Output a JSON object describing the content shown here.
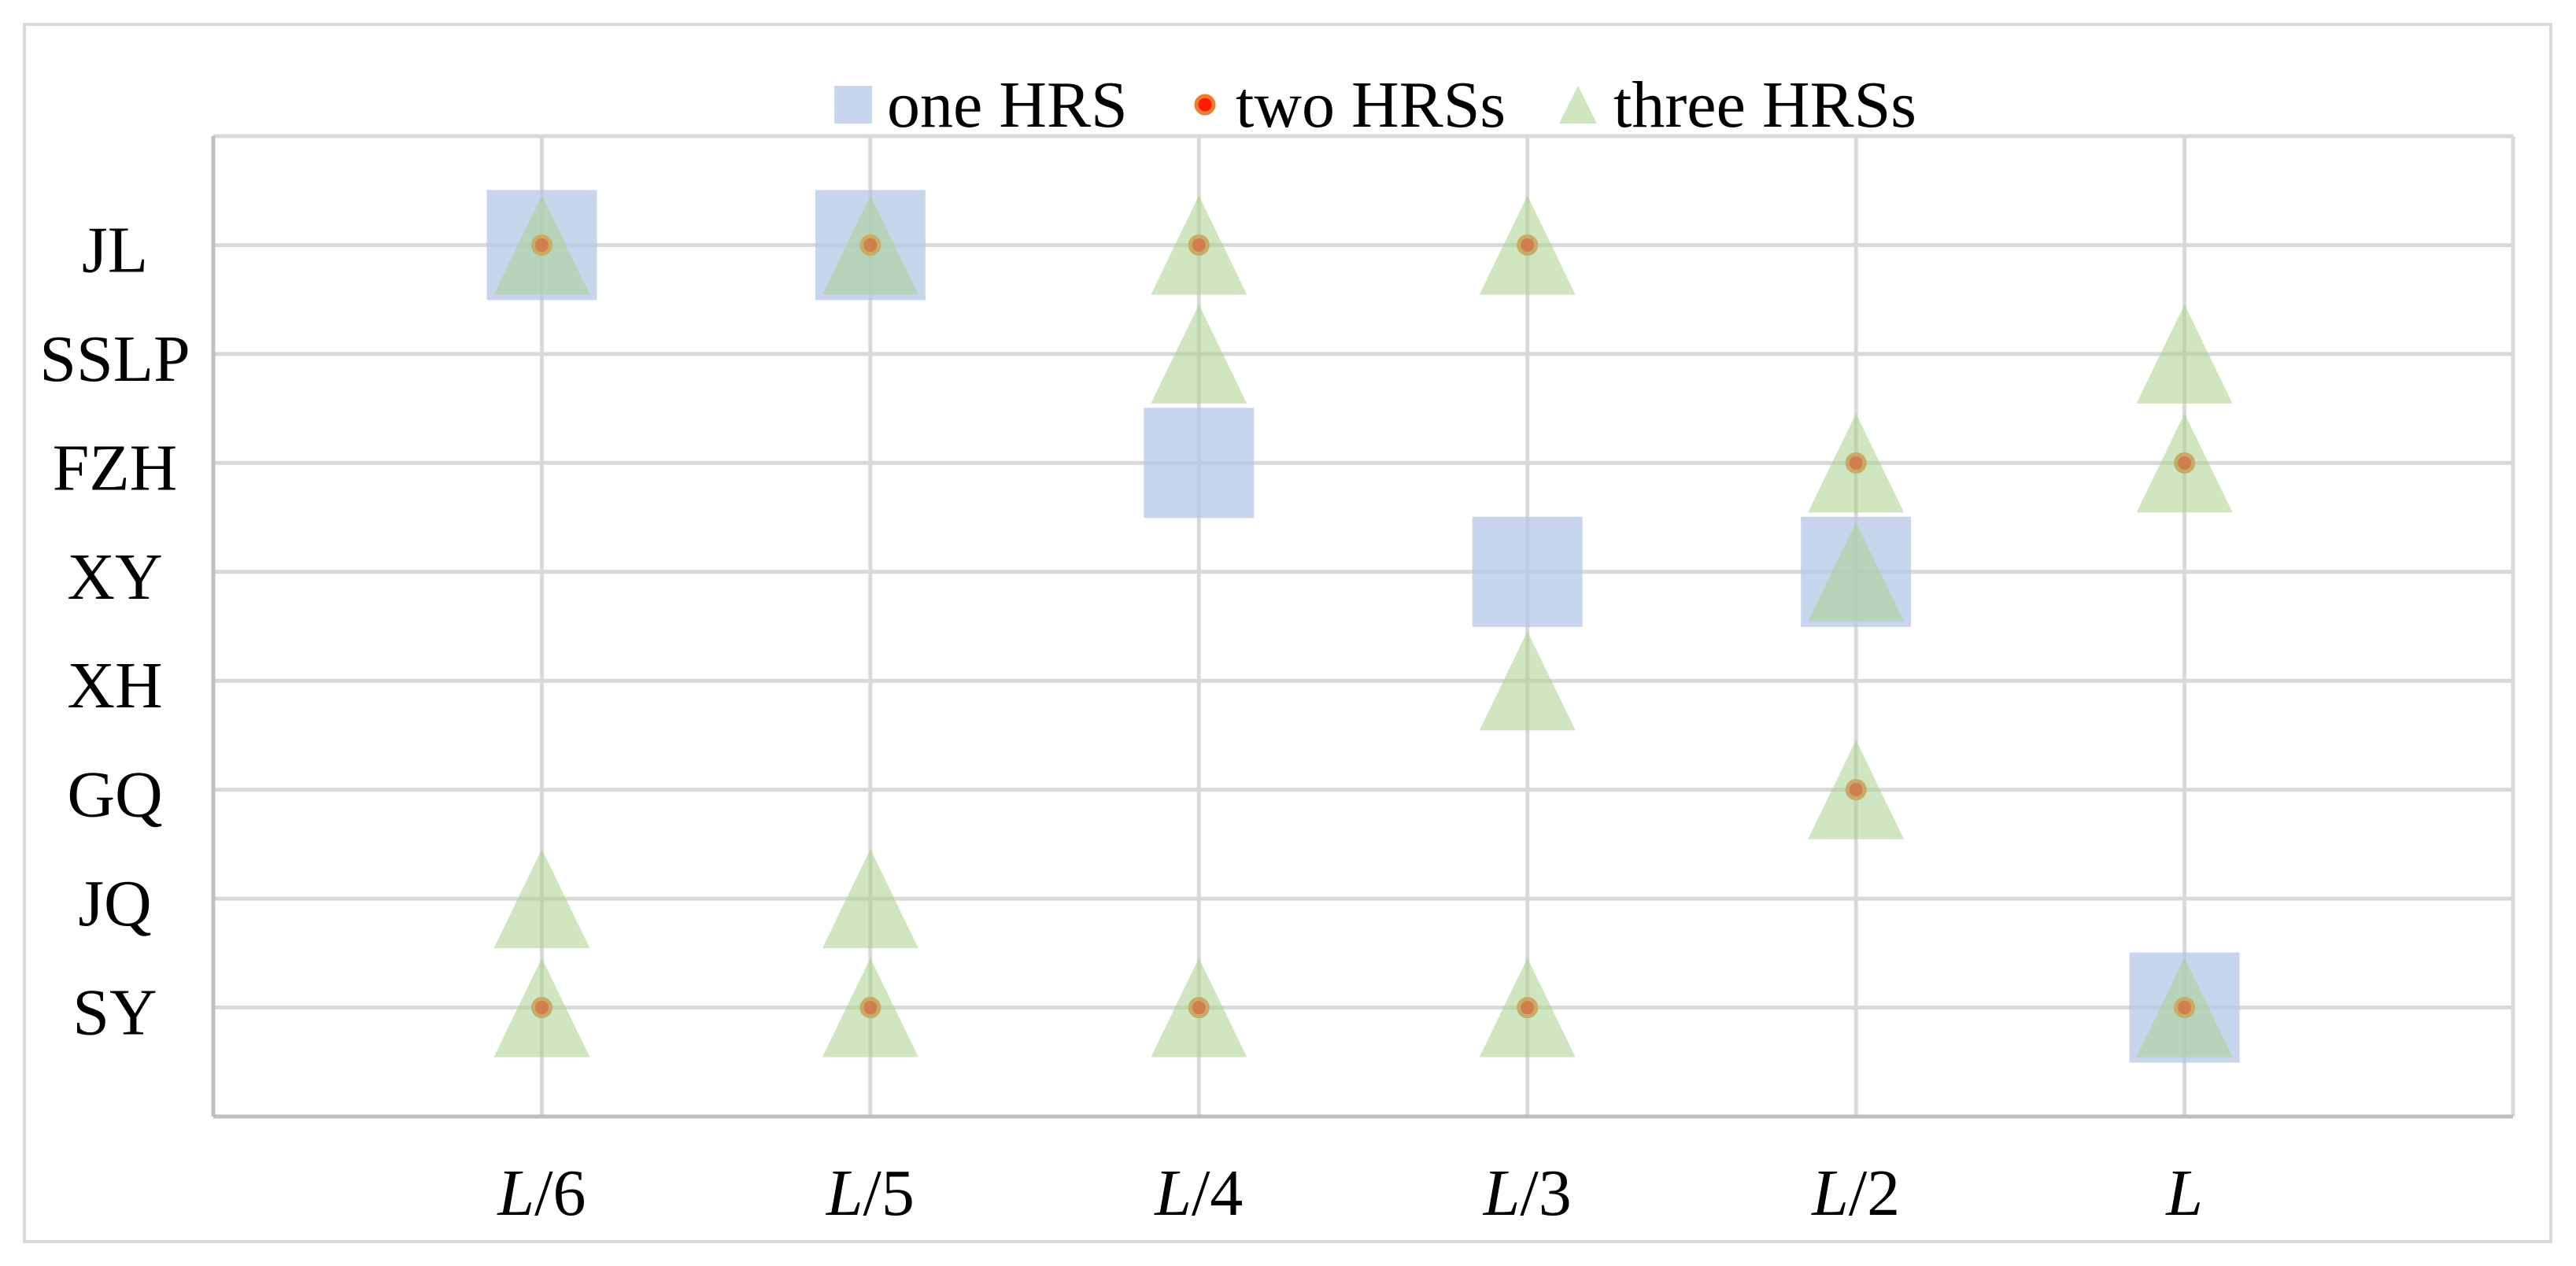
{
  "chart_data": {
    "type": "scatter",
    "x_categories": [
      "L/6",
      "L/5",
      "L/4",
      "L/3",
      "L/2",
      "L"
    ],
    "y_categories": [
      "JL",
      "SSLP",
      "FZH",
      "XY",
      "XH",
      "GQ",
      "JQ",
      "SY"
    ],
    "grid": true,
    "legend_position": "top",
    "series": [
      {
        "name": "one HRS",
        "marker": "square",
        "color": "#b4c7e7",
        "points": [
          [
            "L/6",
            "JL"
          ],
          [
            "L/5",
            "JL"
          ],
          [
            "L/4",
            "FZH"
          ],
          [
            "L/3",
            "XY"
          ],
          [
            "L/2",
            "XY"
          ],
          [
            "L",
            "SY"
          ]
        ]
      },
      {
        "name": "two HRSs",
        "marker": "circle",
        "color": "#ff1a00",
        "edge_color": "#ed7d31",
        "points": [
          [
            "L/6",
            "JL"
          ],
          [
            "L/5",
            "JL"
          ],
          [
            "L/4",
            "JL"
          ],
          [
            "L/3",
            "JL"
          ],
          [
            "L/2",
            "FZH"
          ],
          [
            "L",
            "FZH"
          ],
          [
            "L/2",
            "GQ"
          ],
          [
            "L/6",
            "SY"
          ],
          [
            "L/5",
            "SY"
          ],
          [
            "L/4",
            "SY"
          ],
          [
            "L/3",
            "SY"
          ],
          [
            "L",
            "SY"
          ]
        ]
      },
      {
        "name": "three HRSs",
        "marker": "triangle",
        "color": "#a9d18e",
        "points": [
          [
            "L/6",
            "JL"
          ],
          [
            "L/5",
            "JL"
          ],
          [
            "L/4",
            "JL"
          ],
          [
            "L/3",
            "JL"
          ],
          [
            "L/4",
            "SSLP"
          ],
          [
            "L",
            "SSLP"
          ],
          [
            "L/2",
            "FZH"
          ],
          [
            "L",
            "FZH"
          ],
          [
            "L/2",
            "XY"
          ],
          [
            "L/3",
            "XH"
          ],
          [
            "L/2",
            "GQ"
          ],
          [
            "L/6",
            "JQ"
          ],
          [
            "L/5",
            "JQ"
          ],
          [
            "L/6",
            "SY"
          ],
          [
            "L/5",
            "SY"
          ],
          [
            "L/4",
            "SY"
          ],
          [
            "L/3",
            "SY"
          ],
          [
            "L",
            "SY"
          ]
        ]
      }
    ]
  }
}
